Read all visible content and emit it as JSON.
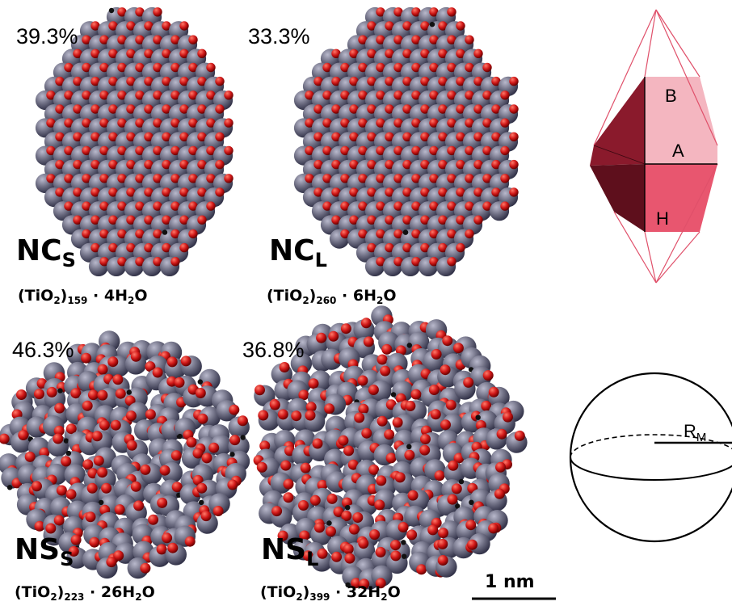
{
  "panels": [
    {
      "id": "ncs",
      "percent": "39.3%",
      "name": "NC",
      "name_sub": "S",
      "f_pre": "(TiO",
      "f_sub1": "2",
      "f_mid": ")",
      "f_sub2": "159",
      "f_post": " · 4H",
      "f_sub3": "2",
      "f_end": "O"
    },
    {
      "id": "ncl",
      "percent": "33.3%",
      "name": "NC",
      "name_sub": "L",
      "f_pre": "(TiO",
      "f_sub1": "2",
      "f_mid": ")",
      "f_sub2": "260",
      "f_post": " · 6H",
      "f_sub3": "2",
      "f_end": "O"
    },
    {
      "id": "nss",
      "percent": "46.3%",
      "name": "NS",
      "name_sub": "S",
      "f_pre": "(TiO",
      "f_sub1": "2",
      "f_mid": ")",
      "f_sub2": "223",
      "f_post": " · 26H",
      "f_sub3": "2",
      "f_end": "O"
    },
    {
      "id": "nsl",
      "percent": "36.8%",
      "name": "NS",
      "name_sub": "L",
      "f_pre": "(TiO",
      "f_sub1": "2",
      "f_mid": ")",
      "f_sub2": "399",
      "f_post": " · 32H",
      "f_sub3": "2",
      "f_end": "O"
    }
  ],
  "octahedron": {
    "label_b": "B",
    "label_a": "A",
    "label_h": "H",
    "color_dark": "#8a1a2c",
    "color_mid": "#e8566f",
    "color_light": "#f4b6c0"
  },
  "sphere": {
    "radius_label": "R",
    "radius_sub": "M"
  },
  "scale_bar": {
    "label": "1 nm"
  },
  "colors": {
    "titanium": "#6d6d82",
    "oxygen": "#d01818",
    "hydrogen": "#111111"
  }
}
